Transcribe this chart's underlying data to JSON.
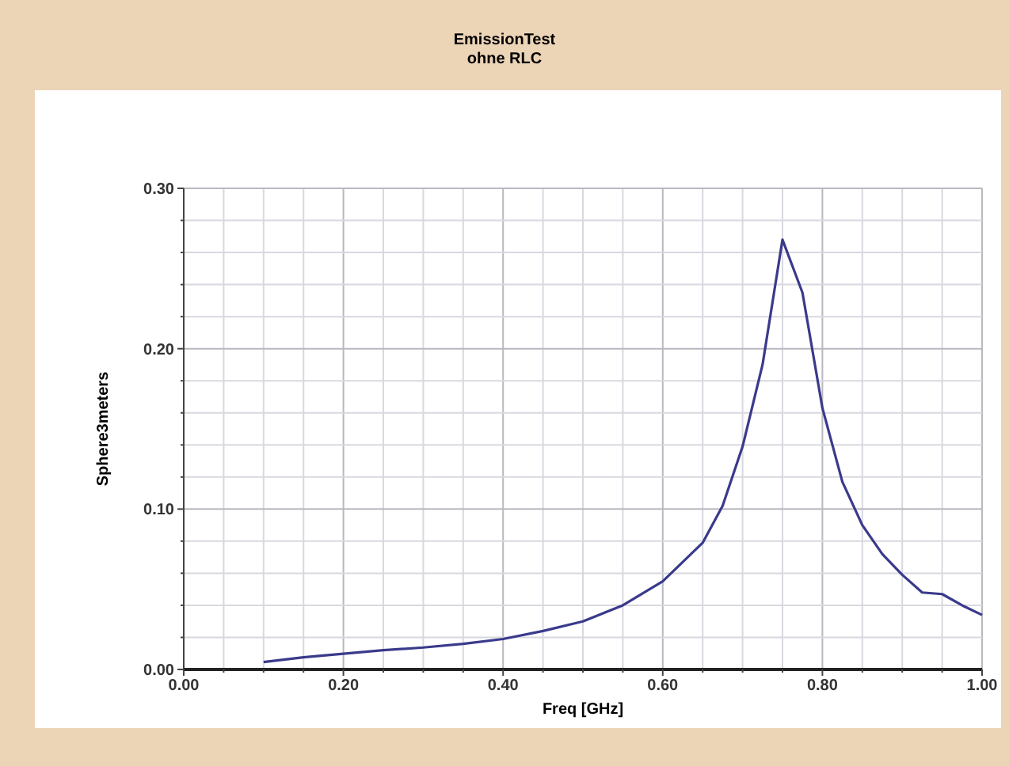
{
  "chart_data": {
    "type": "line",
    "title": "EmissionTest",
    "subtitle": "ohne RLC",
    "xlabel": "Freq [GHz]",
    "ylabel": "Sphere3meters",
    "x": [
      0.1,
      0.15,
      0.2,
      0.25,
      0.3,
      0.35,
      0.4,
      0.45,
      0.5,
      0.55,
      0.6,
      0.65,
      0.675,
      0.7,
      0.725,
      0.75,
      0.775,
      0.8,
      0.825,
      0.85,
      0.875,
      0.9,
      0.925,
      0.95,
      0.975,
      1.0
    ],
    "series": [
      {
        "color": "#3a3a8c",
        "values": [
          0.0046,
          0.0076,
          0.0098,
          0.012,
          0.0137,
          0.016,
          0.019,
          0.024,
          0.03,
          0.04,
          0.055,
          0.079,
          0.102,
          0.139,
          0.19,
          0.268,
          0.235,
          0.163,
          0.117,
          0.09,
          0.072,
          0.059,
          0.048,
          0.047,
          0.04,
          0.034
        ]
      }
    ],
    "xlim": [
      0,
      1
    ],
    "ylim": [
      0,
      0.3
    ],
    "xticks": [
      {
        "value": 0,
        "label": "0.00"
      },
      {
        "value": 0.05,
        "label": null
      },
      {
        "value": 0.1,
        "label": null
      },
      {
        "value": 0.15,
        "label": null
      },
      {
        "value": 0.2,
        "label": "0.20"
      },
      {
        "value": 0.25,
        "label": null
      },
      {
        "value": 0.3,
        "label": null
      },
      {
        "value": 0.35,
        "label": null
      },
      {
        "value": 0.4,
        "label": "0.40"
      },
      {
        "value": 0.45,
        "label": null
      },
      {
        "value": 0.5,
        "label": null
      },
      {
        "value": 0.55,
        "label": null
      },
      {
        "value": 0.6,
        "label": "0.60"
      },
      {
        "value": 0.65,
        "label": null
      },
      {
        "value": 0.7,
        "label": null
      },
      {
        "value": 0.75,
        "label": null
      },
      {
        "value": 0.8,
        "label": "0.80"
      },
      {
        "value": 0.85,
        "label": null
      },
      {
        "value": 0.9,
        "label": null
      },
      {
        "value": 0.95,
        "label": null
      },
      {
        "value": 1,
        "label": "1.00"
      }
    ],
    "yticks": [
      {
        "value": 0,
        "label": "0.00"
      },
      {
        "value": 0.02,
        "label": null
      },
      {
        "value": 0.04,
        "label": null
      },
      {
        "value": 0.06,
        "label": null
      },
      {
        "value": 0.08,
        "label": null
      },
      {
        "value": 0.1,
        "label": "0.10"
      },
      {
        "value": 0.12,
        "label": null
      },
      {
        "value": 0.14,
        "label": null
      },
      {
        "value": 0.16,
        "label": null
      },
      {
        "value": 0.18,
        "label": null
      },
      {
        "value": 0.2,
        "label": "0.20"
      },
      {
        "value": 0.22,
        "label": null
      },
      {
        "value": 0.24,
        "label": null
      },
      {
        "value": 0.26,
        "label": null
      },
      {
        "value": 0.28,
        "label": null
      },
      {
        "value": 0.3,
        "label": "0.30"
      }
    ],
    "grid": true,
    "marker": "none",
    "line_style": "solid"
  }
}
